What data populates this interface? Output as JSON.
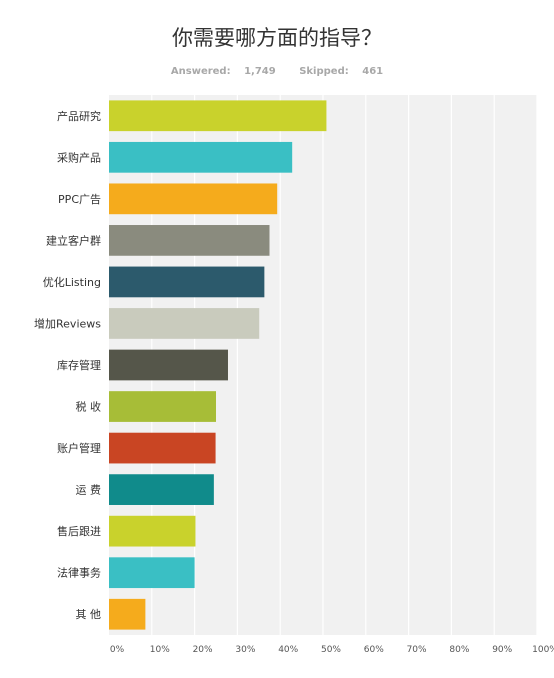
{
  "stats": {
    "answered_label": "Answered:",
    "answered": "1,749",
    "skipped_label": "Skipped:",
    "skipped": "461"
  },
  "chart_data": {
    "type": "bar",
    "orientation": "horizontal",
    "title": "你需要哪方面的指导？",
    "categories": [
      "产品研究",
      "采购产品",
      "PPC广告",
      "建立客户群",
      "优化Listing",
      "增加Reviews",
      "库存管理",
      "税 收",
      "账户管理",
      "运 费",
      "售后跟进",
      "法律事务",
      "其 他"
    ],
    "values": [
      50.8,
      42.8,
      39.3,
      37.5,
      36.3,
      35.1,
      27.8,
      25.0,
      24.9,
      24.5,
      20.2,
      20.0,
      8.5
    ],
    "colors": [
      "#c9d22c",
      "#3abfc4",
      "#f5ab1c",
      "#8a8b7e",
      "#2c5a6c",
      "#c9cbbd",
      "#55564a",
      "#a7bd37",
      "#c94523",
      "#108b8b",
      "#c9d22c",
      "#3abfc4",
      "#f5ab1c"
    ],
    "x_ticks": [
      "0%",
      "10%",
      "20%",
      "30%",
      "40%",
      "50%",
      "60%",
      "70%",
      "80%",
      "90%",
      "100%"
    ],
    "xlim": [
      0,
      100
    ],
    "grid": true,
    "legend": "none"
  }
}
